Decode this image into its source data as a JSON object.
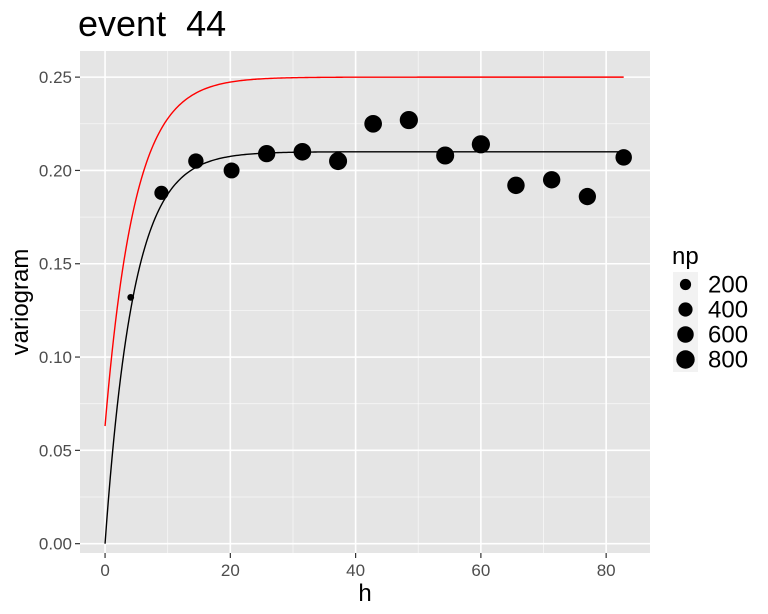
{
  "chart_data": {
    "type": "scatter",
    "title": "event  44",
    "xlabel": "h",
    "ylabel": "variogram",
    "xlim": [
      -4,
      87
    ],
    "ylim": [
      -0.005,
      0.264
    ],
    "x_ticks": [
      0,
      20,
      40,
      60,
      80
    ],
    "x_tick_labels": [
      "0",
      "20",
      "40",
      "60",
      "80"
    ],
    "y_ticks": [
      0.0,
      0.05,
      0.1,
      0.15,
      0.2,
      0.25
    ],
    "y_tick_labels": [
      "0.00",
      "0.05",
      "0.10",
      "0.15",
      "0.20",
      "0.25"
    ],
    "grid": true,
    "legend": {
      "title": "np",
      "position": "right",
      "entries": [
        {
          "label": "200",
          "np": 200
        },
        {
          "label": "400",
          "np": 400
        },
        {
          "label": "600",
          "np": 600
        },
        {
          "label": "800",
          "np": 800
        }
      ]
    },
    "points": [
      {
        "h": 4.1,
        "gamma": 0.132,
        "np": 30
      },
      {
        "h": 9.0,
        "gamma": 0.188,
        "np": 400
      },
      {
        "h": 14.5,
        "gamma": 0.205,
        "np": 500
      },
      {
        "h": 20.2,
        "gamma": 0.2,
        "np": 550
      },
      {
        "h": 25.8,
        "gamma": 0.209,
        "np": 680
      },
      {
        "h": 31.5,
        "gamma": 0.21,
        "np": 720
      },
      {
        "h": 37.2,
        "gamma": 0.205,
        "np": 760
      },
      {
        "h": 42.8,
        "gamma": 0.225,
        "np": 720
      },
      {
        "h": 48.5,
        "gamma": 0.227,
        "np": 780
      },
      {
        "h": 54.3,
        "gamma": 0.208,
        "np": 760
      },
      {
        "h": 60.0,
        "gamma": 0.214,
        "np": 780
      },
      {
        "h": 65.6,
        "gamma": 0.192,
        "np": 700
      },
      {
        "h": 71.3,
        "gamma": 0.195,
        "np": 690
      },
      {
        "h": 77.0,
        "gamma": 0.186,
        "np": 680
      },
      {
        "h": 82.8,
        "gamma": 0.207,
        "np": 600
      }
    ],
    "fitted_lines": [
      {
        "color": "#000000",
        "model": "exponential",
        "nugget": 0.0,
        "sill": 0.21,
        "range": 4.5,
        "x_start": 0,
        "x_end": 82.8
      },
      {
        "color": "#ff0000",
        "model": "exponential",
        "nugget": 0.063,
        "sill": 0.25,
        "range": 4.7,
        "x_start": 0,
        "x_end": 82.8
      }
    ],
    "colors": {
      "panel_background": "#e5e5e5",
      "grid": "#ffffff",
      "points": "#000000"
    }
  }
}
